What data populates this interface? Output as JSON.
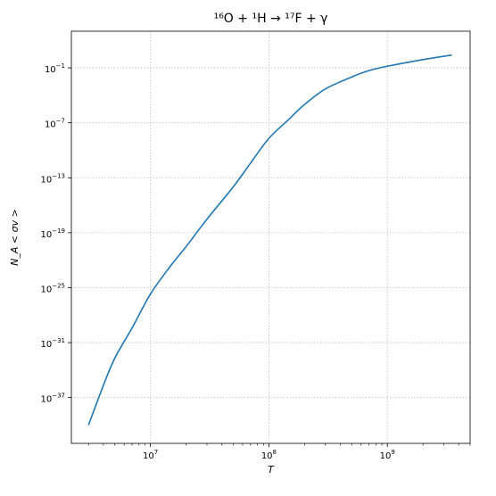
{
  "chart_data": {
    "type": "line",
    "title": "¹⁶O + ¹H → ¹⁷F + γ",
    "xlabel": "T",
    "ylabel": "N_A < σv >",
    "x_scale": "log",
    "y_scale": "log",
    "xlim": [
      2150000,
      5000000000
    ],
    "ylim": [
      1e-42,
      1000.0
    ],
    "x_ticks": [
      10000000.0,
      100000000.0,
      1000000000.0
    ],
    "x_tick_labels": [
      {
        "base": "10",
        "exp": "7"
      },
      {
        "base": "10",
        "exp": "8"
      },
      {
        "base": "10",
        "exp": "9"
      }
    ],
    "y_ticks": [
      1e-37,
      1e-31,
      1e-25,
      1e-19,
      1e-13,
      1e-07,
      0.1
    ],
    "y_tick_labels": [
      {
        "base": "10",
        "exp": "−37"
      },
      {
        "base": "10",
        "exp": "−31"
      },
      {
        "base": "10",
        "exp": "−25"
      },
      {
        "base": "10",
        "exp": "−19"
      },
      {
        "base": "10",
        "exp": "−13"
      },
      {
        "base": "10",
        "exp": "−7"
      },
      {
        "base": "10",
        "exp": "−1"
      }
    ],
    "grid": true,
    "series": [
      {
        "color": "#1f77b4",
        "x": [
          3000000,
          4000000,
          5000000,
          7000000,
          10000000,
          15000000,
          20000000,
          30000000,
          50000000,
          70000000,
          100000000,
          150000000,
          200000000,
          300000000,
          500000000,
          700000000,
          1000000000,
          2000000000,
          3500000000
        ],
        "y": [
          1e-40,
          2e-36,
          2e-33,
          4e-30,
          2e-26,
          3e-23,
          3e-21,
          3e-18,
          1e-14,
          4e-12,
          2e-09,
          3e-07,
          1e-05,
          0.0005,
          0.01,
          0.05,
          0.15,
          0.8,
          2.5
        ]
      }
    ]
  }
}
